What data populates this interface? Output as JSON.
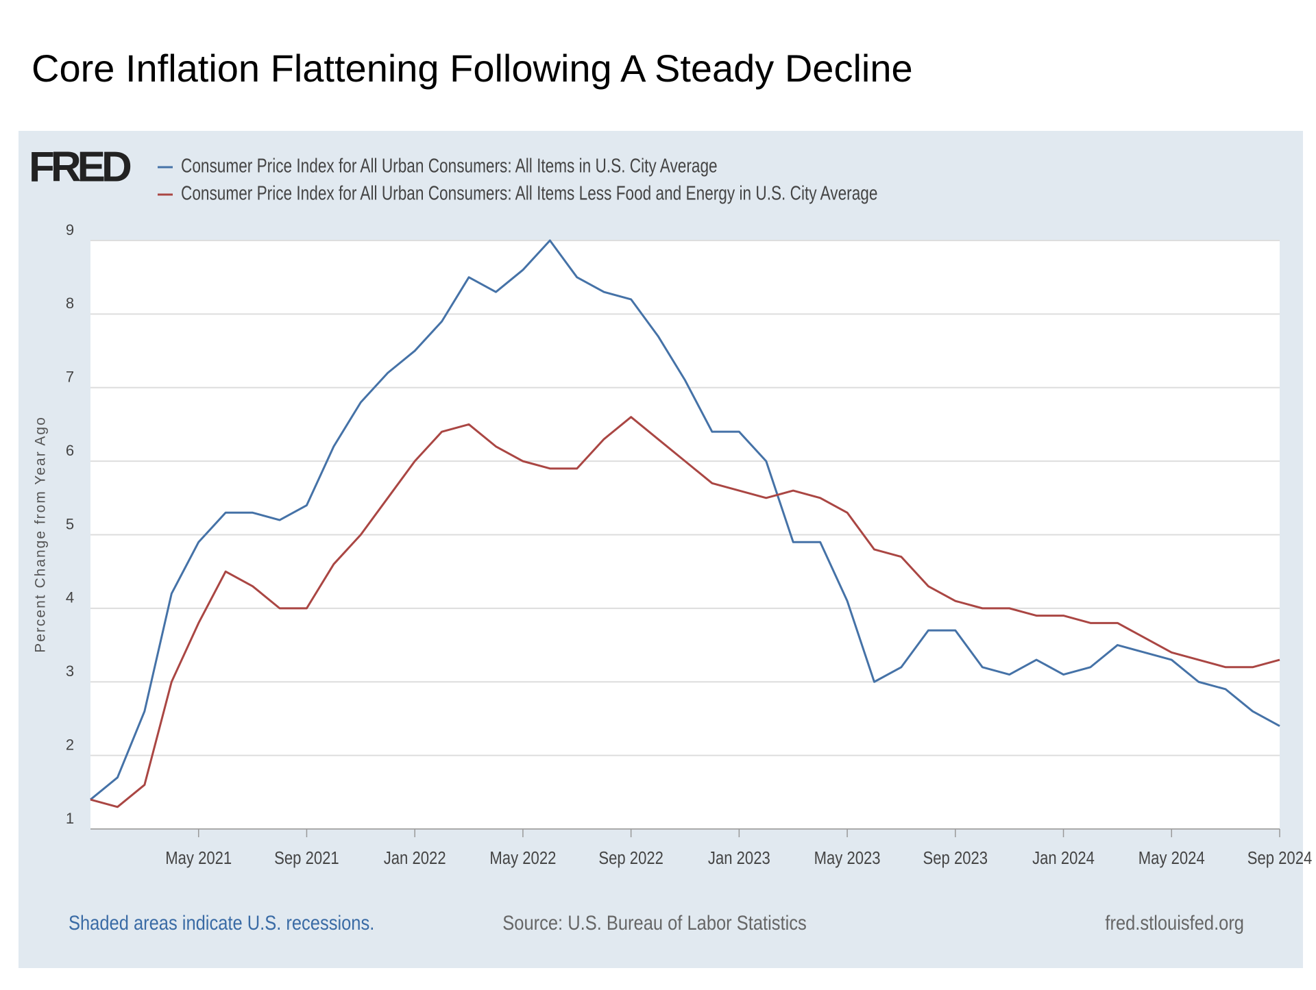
{
  "slide_title": "Core Inflation Flattening Following A Steady Decline",
  "logo": "FRED",
  "chart_data": {
    "type": "line",
    "ylabel": "Percent Change from Year Ago",
    "categories": [
      null,
      null,
      null,
      null,
      "May 2021",
      null,
      null,
      null,
      "Sep 2021",
      null,
      null,
      null,
      "Jan 2022",
      null,
      null,
      null,
      "May 2022",
      null,
      null,
      null,
      "Sep 2022",
      null,
      null,
      null,
      "Jan 2023",
      null,
      null,
      null,
      "May 2023",
      null,
      null,
      null,
      "Sep 2023",
      null,
      null,
      null,
      "Jan 2024",
      null,
      null,
      null,
      "May 2024",
      null,
      null,
      null,
      "Sep 2024"
    ],
    "series": [
      {
        "name": "Consumer Price Index for All Urban Consumers: All Items in U.S. City Average",
        "color": "#4572a7",
        "values": [
          1.4,
          1.7,
          2.6,
          4.2,
          4.9,
          5.3,
          5.3,
          5.2,
          5.4,
          6.2,
          6.8,
          7.2,
          7.5,
          7.9,
          8.5,
          8.3,
          8.6,
          9.0,
          8.5,
          8.3,
          8.2,
          7.7,
          7.1,
          6.4,
          6.4,
          6.0,
          4.9,
          4.9,
          4.1,
          3.0,
          3.2,
          3.7,
          3.7,
          3.2,
          3.1,
          3.3,
          3.1,
          3.2,
          3.5,
          3.4,
          3.3,
          3.0,
          2.9,
          2.6,
          2.4
        ]
      },
      {
        "name": "Consumer Price Index for All Urban Consumers: All Items Less Food and Energy in U.S. City Average",
        "color": "#aa4643",
        "values": [
          1.4,
          1.3,
          1.6,
          3.0,
          3.8,
          4.5,
          4.3,
          4.0,
          4.0,
          4.6,
          5.0,
          5.5,
          6.0,
          6.4,
          6.5,
          6.2,
          6.0,
          5.9,
          5.9,
          6.3,
          6.6,
          6.3,
          6.0,
          5.7,
          5.6,
          5.5,
          5.6,
          5.5,
          5.3,
          4.8,
          4.7,
          4.3,
          4.1,
          4.0,
          4.0,
          3.9,
          3.9,
          3.8,
          3.8,
          3.6,
          3.4,
          3.3,
          3.2,
          3.2,
          3.3
        ]
      }
    ],
    "ylim": [
      1,
      9
    ],
    "yticks": [
      1,
      2,
      3,
      4,
      5,
      6,
      7,
      8,
      9
    ],
    "grid": true,
    "footer_left": "Shaded areas indicate U.S. recessions.",
    "footer_center": "Source: U.S. Bureau of Labor Statistics",
    "footer_right": "fred.stlouisfed.org"
  }
}
